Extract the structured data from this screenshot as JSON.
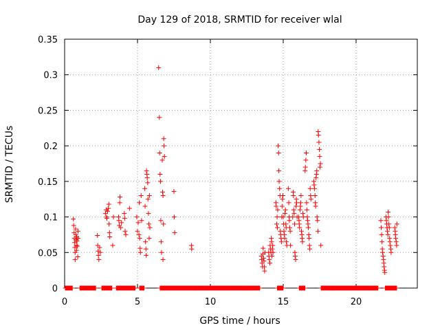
{
  "chart_data": {
    "type": "scatter",
    "title": "Day 129 of 2018, SRMTID for receiver wlal",
    "xlabel": "GPS time / hours",
    "ylabel": "SRMTID / TECUs",
    "xlim": [
      0,
      24.2
    ],
    "ylim": [
      0,
      0.35
    ],
    "x_ticks": [
      0,
      5,
      10,
      15,
      20
    ],
    "x_tick_labels": [
      "0",
      "5",
      "10",
      "15",
      "20"
    ],
    "y_ticks": [
      0,
      0.05,
      0.1,
      0.15,
      0.2,
      0.25,
      0.3,
      0.35
    ],
    "y_tick_labels": [
      "0",
      "0.05",
      "0.1",
      "0.15",
      "0.2",
      "0.25",
      "0.3",
      "0.35"
    ],
    "grid": true,
    "marker": "+",
    "color": "#ff0000",
    "zero_series": {
      "name": "zero values",
      "y": 0,
      "x_ranges": [
        [
          0.05,
          0.55
        ],
        [
          1.05,
          2.15
        ],
        [
          2.55,
          3.25
        ],
        [
          3.55,
          4.85
        ],
        [
          5.15,
          5.45
        ],
        [
          6.55,
          10.6
        ],
        [
          10.6,
          13.4
        ],
        [
          14.6,
          15.0
        ],
        [
          16.1,
          16.5
        ],
        [
          17.6,
          21.5
        ],
        [
          22.0,
          22.8
        ]
      ],
      "step": 0.03
    },
    "series": [
      {
        "name": "SRMTID",
        "points": [
          [
            0.6,
            0.097
          ],
          [
            0.62,
            0.088
          ],
          [
            0.65,
            0.078
          ],
          [
            0.66,
            0.07
          ],
          [
            0.68,
            0.064
          ],
          [
            0.7,
            0.057
          ],
          [
            0.72,
            0.05
          ],
          [
            0.72,
            0.04
          ],
          [
            0.75,
            0.083
          ],
          [
            0.77,
            0.075
          ],
          [
            0.78,
            0.068
          ],
          [
            0.8,
            0.06
          ],
          [
            0.82,
            0.053
          ],
          [
            0.83,
            0.072
          ],
          [
            0.85,
            0.066
          ],
          [
            0.88,
            0.059
          ],
          [
            0.9,
            0.044
          ],
          [
            0.92,
            0.08
          ],
          [
            0.93,
            0.07
          ],
          [
            2.25,
            0.074
          ],
          [
            2.27,
            0.06
          ],
          [
            2.3,
            0.052
          ],
          [
            2.32,
            0.046
          ],
          [
            2.35,
            0.04
          ],
          [
            2.4,
            0.057
          ],
          [
            2.45,
            0.05
          ],
          [
            2.8,
            0.105
          ],
          [
            2.85,
            0.11
          ],
          [
            2.88,
            0.1
          ],
          [
            2.9,
            0.098
          ],
          [
            2.95,
            0.108
          ],
          [
            3.0,
            0.112
          ],
          [
            3.03,
            0.118
          ],
          [
            3.05,
            0.09
          ],
          [
            3.08,
            0.078
          ],
          [
            3.1,
            0.072
          ],
          [
            3.3,
            0.06
          ],
          [
            3.35,
            0.1
          ],
          [
            3.7,
            0.1
          ],
          [
            3.72,
            0.095
          ],
          [
            3.75,
            0.088
          ],
          [
            3.78,
            0.12
          ],
          [
            3.8,
            0.128
          ],
          [
            3.85,
            0.085
          ],
          [
            3.9,
            0.092
          ],
          [
            4.1,
            0.105
          ],
          [
            4.12,
            0.098
          ],
          [
            4.15,
            0.08
          ],
          [
            4.2,
            0.075
          ],
          [
            4.45,
            0.112
          ],
          [
            4.95,
            0.1
          ],
          [
            5.0,
            0.08
          ],
          [
            5.05,
            0.092
          ],
          [
            5.1,
            0.075
          ],
          [
            5.12,
            0.12
          ],
          [
            5.15,
            0.07
          ],
          [
            5.18,
            0.056
          ],
          [
            5.2,
            0.05
          ],
          [
            5.25,
            0.13
          ],
          [
            5.28,
            0.095
          ],
          [
            5.5,
            0.14
          ],
          [
            5.52,
            0.115
          ],
          [
            5.55,
            0.065
          ],
          [
            5.58,
            0.055
          ],
          [
            5.6,
            0.046
          ],
          [
            5.62,
            0.165
          ],
          [
            5.65,
            0.16
          ],
          [
            5.67,
            0.155
          ],
          [
            5.7,
            0.148
          ],
          [
            5.72,
            0.125
          ],
          [
            5.75,
            0.105
          ],
          [
            5.78,
            0.09
          ],
          [
            5.8,
            0.07
          ],
          [
            5.82,
            0.13
          ],
          [
            5.85,
            0.085
          ],
          [
            6.45,
            0.31
          ],
          [
            6.5,
            0.24
          ],
          [
            6.52,
            0.19
          ],
          [
            6.55,
            0.16
          ],
          [
            6.58,
            0.15
          ],
          [
            6.6,
            0.095
          ],
          [
            6.62,
            0.065
          ],
          [
            6.65,
            0.05
          ],
          [
            6.7,
            0.18
          ],
          [
            6.72,
            0.135
          ],
          [
            6.75,
            0.13
          ],
          [
            6.78,
            0.09
          ],
          [
            6.8,
            0.21
          ],
          [
            6.82,
            0.2
          ],
          [
            6.85,
            0.185
          ],
          [
            6.75,
            0.04
          ],
          [
            7.5,
            0.136
          ],
          [
            7.52,
            0.1
          ],
          [
            7.55,
            0.078
          ],
          [
            8.7,
            0.06
          ],
          [
            8.72,
            0.055
          ],
          [
            13.5,
            0.045
          ],
          [
            13.52,
            0.04
          ],
          [
            13.55,
            0.035
          ],
          [
            13.58,
            0.03
          ],
          [
            13.6,
            0.048
          ],
          [
            13.62,
            0.056
          ],
          [
            13.65,
            0.042
          ],
          [
            13.68,
            0.038
          ],
          [
            13.7,
            0.03
          ],
          [
            13.72,
            0.024
          ],
          [
            13.75,
            0.05
          ],
          [
            14.0,
            0.05
          ],
          [
            14.02,
            0.045
          ],
          [
            14.05,
            0.04
          ],
          [
            14.08,
            0.035
          ],
          [
            14.1,
            0.06
          ],
          [
            14.12,
            0.055
          ],
          [
            14.15,
            0.05
          ],
          [
            14.18,
            0.07
          ],
          [
            14.2,
            0.065
          ],
          [
            14.22,
            0.045
          ],
          [
            14.25,
            0.055
          ],
          [
            14.28,
            0.06
          ],
          [
            14.3,
            0.05
          ],
          [
            14.5,
            0.12
          ],
          [
            14.52,
            0.115
          ],
          [
            14.55,
            0.09
          ],
          [
            14.58,
            0.1
          ],
          [
            14.6,
            0.085
          ],
          [
            14.62,
            0.11
          ],
          [
            14.65,
            0.2
          ],
          [
            14.68,
            0.19
          ],
          [
            14.7,
            0.165
          ],
          [
            14.72,
            0.15
          ],
          [
            14.75,
            0.14
          ],
          [
            14.78,
            0.13
          ],
          [
            14.8,
            0.08
          ],
          [
            14.82,
            0.075
          ],
          [
            14.85,
            0.07
          ],
          [
            14.88,
            0.065
          ],
          [
            14.9,
            0.1
          ],
          [
            14.92,
            0.115
          ],
          [
            14.95,
            0.125
          ],
          [
            14.98,
            0.13
          ],
          [
            15.0,
            0.1
          ],
          [
            15.02,
            0.09
          ],
          [
            15.05,
            0.08
          ],
          [
            15.08,
            0.075
          ],
          [
            15.1,
            0.07
          ],
          [
            15.12,
            0.105
          ],
          [
            15.15,
            0.11
          ],
          [
            15.18,
            0.09
          ],
          [
            15.2,
            0.085
          ],
          [
            15.22,
            0.065
          ],
          [
            15.25,
            0.06
          ],
          [
            15.35,
            0.14
          ],
          [
            15.38,
            0.12
          ],
          [
            15.4,
            0.1
          ],
          [
            15.42,
            0.095
          ],
          [
            15.45,
            0.085
          ],
          [
            15.48,
            0.08
          ],
          [
            15.5,
            0.06
          ],
          [
            15.65,
            0.1
          ],
          [
            15.68,
            0.135
          ],
          [
            15.7,
            0.13
          ],
          [
            15.72,
            0.11
          ],
          [
            15.75,
            0.105
          ],
          [
            15.78,
            0.09
          ],
          [
            15.8,
            0.05
          ],
          [
            15.82,
            0.045
          ],
          [
            15.85,
            0.04
          ],
          [
            15.88,
            0.115
          ],
          [
            15.9,
            0.125
          ],
          [
            15.92,
            0.12
          ],
          [
            15.95,
            0.1
          ],
          [
            16.05,
            0.1
          ],
          [
            16.08,
            0.095
          ],
          [
            16.1,
            0.09
          ],
          [
            16.12,
            0.085
          ],
          [
            16.15,
            0.11
          ],
          [
            16.18,
            0.115
          ],
          [
            16.2,
            0.12
          ],
          [
            16.22,
            0.13
          ],
          [
            16.25,
            0.08
          ],
          [
            16.28,
            0.075
          ],
          [
            16.3,
            0.07
          ],
          [
            16.32,
            0.065
          ],
          [
            16.35,
            0.105
          ],
          [
            16.38,
            0.1
          ],
          [
            16.5,
            0.165
          ],
          [
            16.52,
            0.17
          ],
          [
            16.55,
            0.18
          ],
          [
            16.58,
            0.19
          ],
          [
            16.6,
            0.12
          ],
          [
            16.62,
            0.11
          ],
          [
            16.65,
            0.1
          ],
          [
            16.68,
            0.095
          ],
          [
            16.7,
            0.09
          ],
          [
            16.72,
            0.085
          ],
          [
            16.75,
            0.075
          ],
          [
            16.78,
            0.07
          ],
          [
            16.8,
            0.06
          ],
          [
            16.82,
            0.055
          ],
          [
            16.85,
            0.14
          ],
          [
            16.88,
            0.13
          ],
          [
            16.9,
            0.125
          ],
          [
            17.1,
            0.15
          ],
          [
            17.12,
            0.145
          ],
          [
            17.15,
            0.14
          ],
          [
            17.18,
            0.13
          ],
          [
            17.2,
            0.12
          ],
          [
            17.22,
            0.115
          ],
          [
            17.25,
            0.155
          ],
          [
            17.28,
            0.16
          ],
          [
            17.3,
            0.165
          ],
          [
            17.32,
            0.1
          ],
          [
            17.35,
            0.095
          ],
          [
            17.38,
            0.08
          ],
          [
            17.4,
            0.22
          ],
          [
            17.42,
            0.215
          ],
          [
            17.45,
            0.205
          ],
          [
            17.48,
            0.195
          ],
          [
            17.5,
            0.185
          ],
          [
            17.52,
            0.17
          ],
          [
            17.55,
            0.175
          ],
          [
            17.58,
            0.06
          ],
          [
            21.7,
            0.095
          ],
          [
            21.72,
            0.085
          ],
          [
            21.75,
            0.075
          ],
          [
            21.78,
            0.065
          ],
          [
            21.8,
            0.055
          ],
          [
            21.82,
            0.05
          ],
          [
            21.85,
            0.045
          ],
          [
            21.88,
            0.04
          ],
          [
            21.9,
            0.035
          ],
          [
            21.92,
            0.03
          ],
          [
            21.95,
            0.025
          ],
          [
            21.97,
            0.022
          ],
          [
            22.05,
            0.1
          ],
          [
            22.08,
            0.095
          ],
          [
            22.1,
            0.09
          ],
          [
            22.12,
            0.085
          ],
          [
            22.15,
            0.08
          ],
          [
            22.18,
            0.075
          ],
          [
            22.2,
            0.107
          ],
          [
            22.22,
            0.1
          ],
          [
            22.25,
            0.09
          ],
          [
            22.28,
            0.085
          ],
          [
            22.3,
            0.07
          ],
          [
            22.32,
            0.065
          ],
          [
            22.35,
            0.06
          ],
          [
            22.38,
            0.055
          ],
          [
            22.4,
            0.05
          ],
          [
            22.65,
            0.085
          ],
          [
            22.68,
            0.08
          ],
          [
            22.7,
            0.075
          ],
          [
            22.72,
            0.07
          ],
          [
            22.75,
            0.065
          ],
          [
            22.78,
            0.06
          ],
          [
            22.8,
            0.09
          ]
        ]
      }
    ]
  }
}
